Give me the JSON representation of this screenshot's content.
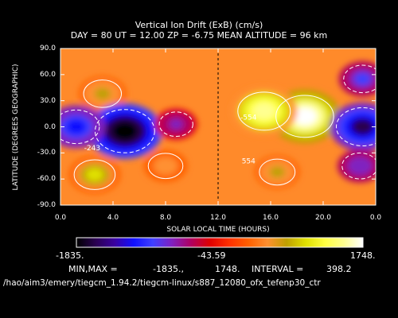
{
  "title": "Vertical Ion Drift (ExB) (cm/s)",
  "subtitle": "DAY =  80   UT = 12.00   ZP =  -6.75   MEAN ALTITUDE =   96 km",
  "path": "/hao/aim3/emery/tiegcm_1.94.2/tiegcm-linux/s887_12080_ofx_tefenp30_ctr",
  "colorbar": {
    "min_label": "-1835.",
    "mid_label": "-43.59",
    "max_label": "1748.",
    "colors": [
      "#000000",
      "#2a0050",
      "#3a00a0",
      "#1010ff",
      "#4040ff",
      "#8020c0",
      "#b00060",
      "#e00000",
      "#ff3000",
      "#ff6000",
      "#ff9030",
      "#c0a000",
      "#e0e000",
      "#ffff40",
      "#ffff90",
      "#ffffff"
    ]
  },
  "stats": {
    "minmax_label": "MIN,MAX =",
    "min_value": "-1835.,",
    "max_value": "1748.",
    "interval_label": "INTERVAL =",
    "interval_value": "398.2"
  },
  "chart_data": {
    "type": "heatmap",
    "title": "Vertical Ion Drift (ExB) (cm/s)",
    "xlabel": "SOLAR LOCAL TIME (HOURS)",
    "ylabel": "LATITUDE (DEGREES GEOGRAPHIC)",
    "xlim": [
      0,
      24
    ],
    "ylim": [
      -90,
      90
    ],
    "x_ticks": [
      "0.0",
      "4.0",
      "8.0",
      "12.0",
      "16.0",
      "20.0",
      "0.0"
    ],
    "y_ticks": [
      "90.0",
      "60.0",
      "30.0",
      "0.0",
      "-30.0",
      "-60.0",
      "-90.0"
    ],
    "value_range": [
      -1835,
      1748
    ],
    "contour_interval": 398.2,
    "contour_labels": [
      {
        "x": 1.8,
        "y": -27,
        "text": "-243"
      },
      {
        "x": 13.7,
        "y": 8,
        "text": "-554"
      },
      {
        "x": 13.8,
        "y": -42,
        "text": "554"
      }
    ],
    "dashed_line_x": 12.0,
    "features": [
      {
        "kind": "max",
        "x": 18.6,
        "y": 12,
        "value": 1748
      },
      {
        "kind": "max",
        "x": 15.5,
        "y": 18,
        "value": 1500
      },
      {
        "kind": "max",
        "x": 2.6,
        "y": -55,
        "value": 950
      },
      {
        "kind": "max",
        "x": 3.2,
        "y": 38,
        "value": 800
      },
      {
        "kind": "max",
        "x": 16.5,
        "y": -52,
        "value": 700
      },
      {
        "kind": "max",
        "x": 8.0,
        "y": -45,
        "value": 650
      },
      {
        "kind": "min",
        "x": 4.9,
        "y": -5,
        "value": -1835
      },
      {
        "kind": "min",
        "x": 23.0,
        "y": 0,
        "value": -1500
      },
      {
        "kind": "min",
        "x": 1.2,
        "y": 0,
        "value": -1200
      },
      {
        "kind": "min",
        "x": 8.8,
        "y": 3,
        "value": -600
      },
      {
        "kind": "min",
        "x": 23.0,
        "y": 55,
        "value": -800
      },
      {
        "kind": "min",
        "x": 22.8,
        "y": -45,
        "value": -700
      }
    ]
  }
}
